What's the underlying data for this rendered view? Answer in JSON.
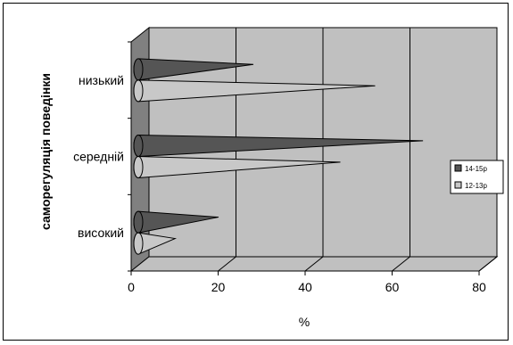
{
  "chart_data": {
    "type": "bar",
    "orientation": "horizontal",
    "style": "3d-cone",
    "categories": [
      "низький",
      "середній",
      "високий"
    ],
    "series": [
      {
        "name": "14-15р",
        "values": [
          24,
          63,
          16
        ],
        "color": "#555555"
      },
      {
        "name": "12-13р",
        "values": [
          52,
          44,
          6
        ],
        "color": "#c8c8c8"
      }
    ],
    "xlabel": "%",
    "ylabel": "саморегуляція поведінки",
    "xlim": [
      0,
      80
    ],
    "xticks": [
      "0",
      "20",
      "40",
      "60",
      "80"
    ],
    "grid": true,
    "legend_position": "right",
    "colors": {
      "wall": "#c0c0c0",
      "floor": "#c0c0c0",
      "side_wall": "#808080",
      "gridline": "#000000"
    }
  }
}
